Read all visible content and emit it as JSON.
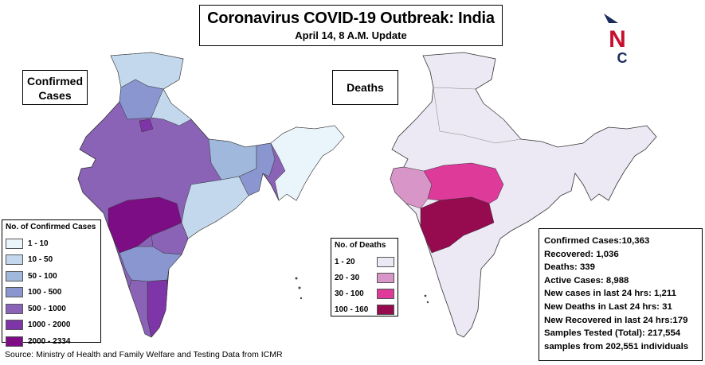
{
  "title": {
    "main": "Coronavirus COVID-19 Outbreak: India",
    "sub": "April 14, 8 A.M. Update"
  },
  "logo": {
    "letter_top": "N",
    "letter_bottom": "C",
    "colors": {
      "arrow": "#1a2c5b",
      "n": "#c8102e",
      "c": "#1a2c5b"
    }
  },
  "maps": {
    "confirmed": {
      "label": "Confirmed Cases",
      "legend_title": "No. of Confirmed Cases",
      "legend": [
        {
          "label": "1 - 10",
          "color": "#eaf4fb"
        },
        {
          "label": "10 - 50",
          "color": "#c3d8ec"
        },
        {
          "label": "50 - 100",
          "color": "#9fb8dc"
        },
        {
          "label": "100 - 500",
          "color": "#8a96cf"
        },
        {
          "label": "500 - 1000",
          "color": "#8a63b7"
        },
        {
          "label": "1000 - 2000",
          "color": "#7e35a8"
        },
        {
          "label": "2000 - 2334",
          "color": "#7d0d84"
        }
      ]
    },
    "deaths": {
      "label": "Deaths",
      "legend_title": "No. of Deaths",
      "legend": [
        {
          "label": "1 - 20",
          "color": "#ece9f4"
        },
        {
          "label": "20 - 30",
          "color": "#d895c8"
        },
        {
          "label": "30 - 100",
          "color": "#dd3a9a"
        },
        {
          "label": "100 - 160",
          "color": "#960a4f"
        }
      ]
    }
  },
  "stats": [
    "Confirmed Cases:10,363",
    "Recovered: 1,036",
    "Deaths: 339",
    "Active Cases: 8,988",
    "New cases in last 24 hrs: 1,211",
    "New Deaths in Last 24 hrs: 31",
    "New Recovered in last 24 hrs:179",
    "Samples Tested (Total):   217,554",
    "samples from 202,551 individuals"
  ],
  "source": "Source: Ministry of Health and Family Welfare and Testing Data from ICMR"
}
